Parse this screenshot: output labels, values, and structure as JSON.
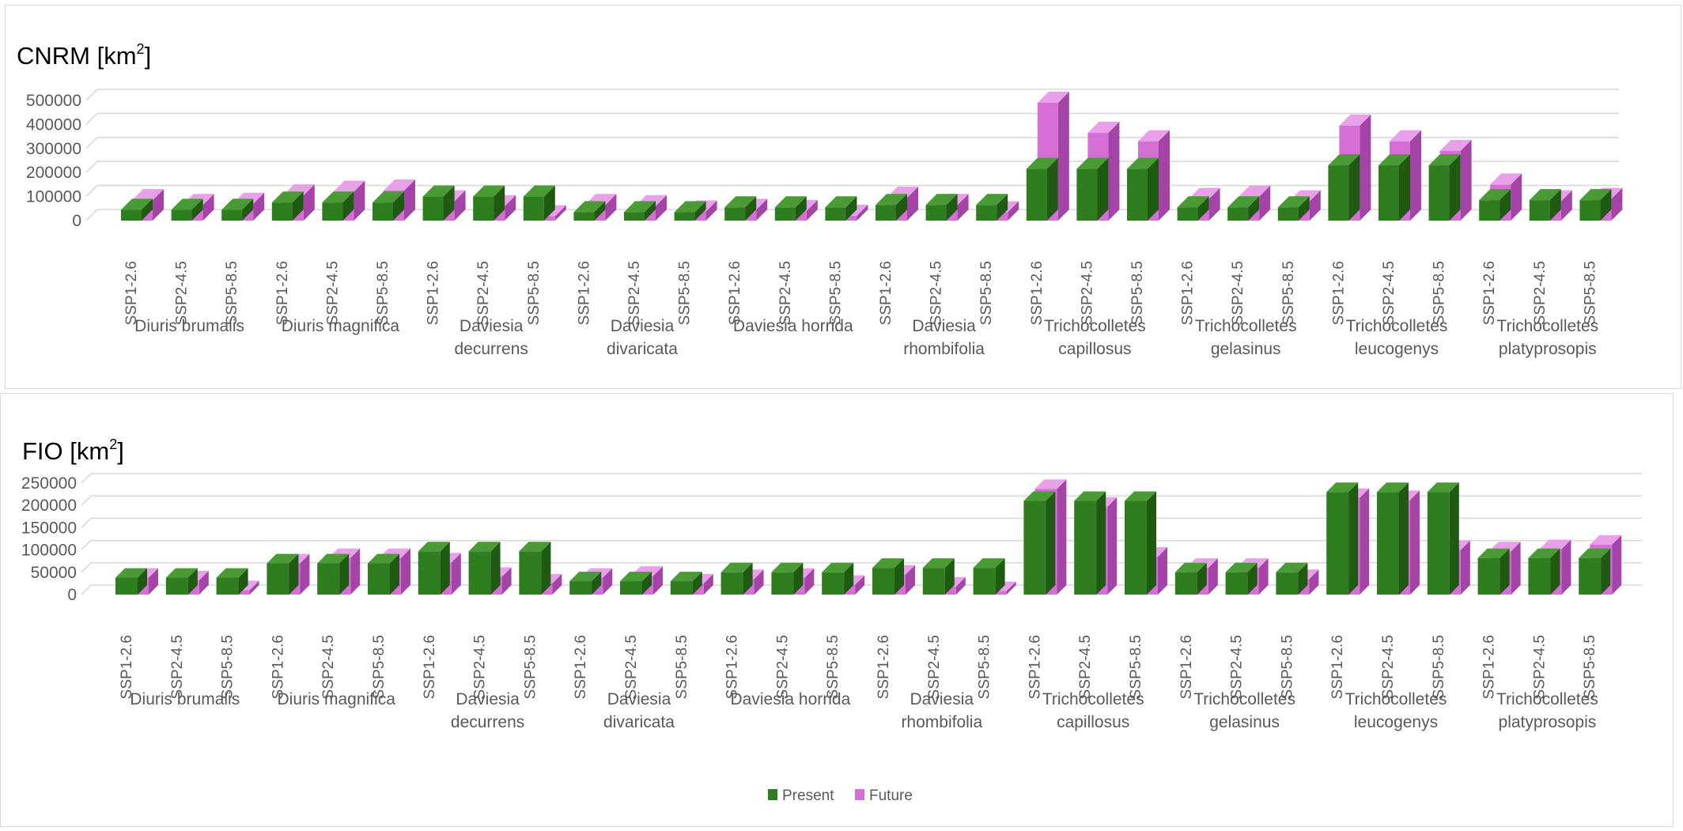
{
  "chart_data": [
    {
      "type": "bar",
      "title": "CNRM [km",
      "title_sup": "2",
      "title_end": "]",
      "ylim": [
        0,
        500000
      ],
      "yticks": [
        "0",
        "100000",
        "200000",
        "300000",
        "400000",
        "500000"
      ],
      "scenarios": [
        "SSP1-2.6",
        "SSP2-4.5",
        "SSP5-8.5"
      ],
      "species": [
        {
          "name": [
            "Diuris brumalis"
          ],
          "present": 45000,
          "future": [
            85000,
            65000,
            70000
          ]
        },
        {
          "name": [
            "Diuris magnifica"
          ],
          "present": 75000,
          "future": [
            105000,
            120000,
            125000
          ]
        },
        {
          "name": [
            "Daviesia",
            "decurrens"
          ],
          "present": 100000,
          "future": [
            80000,
            60000,
            18000
          ]
        },
        {
          "name": [
            "Daviesia",
            "divaricata"
          ],
          "present": 35000,
          "future": [
            65000,
            60000,
            38000
          ]
        },
        {
          "name": [
            "Daviesia horrida"
          ],
          "present": 55000,
          "future": [
            45000,
            40000,
            20000
          ]
        },
        {
          "name": [
            "Daviesia",
            "rhombifolia"
          ],
          "present": 65000,
          "future": [
            95000,
            65000,
            35000
          ]
        },
        {
          "name": [
            "Trichocolletes",
            "capillosus"
          ],
          "present": 215000,
          "future": [
            490000,
            365000,
            330000
          ]
        },
        {
          "name": [
            "Trichocolletes",
            "gelasinus"
          ],
          "present": 55000,
          "future": [
            90000,
            100000,
            80000
          ]
        },
        {
          "name": [
            "Trichocolletes",
            "leucogenys"
          ],
          "present": 230000,
          "future": [
            395000,
            330000,
            290000
          ]
        },
        {
          "name": [
            "Trichocolletes",
            "platyprosopis"
          ],
          "present": 85000,
          "future": [
            150000,
            80000,
            90000
          ]
        }
      ]
    },
    {
      "type": "bar",
      "title": "FIO [km",
      "title_sup": "2",
      "title_end": "]",
      "ylim": [
        0,
        250000
      ],
      "yticks": [
        "0",
        "50000",
        "100000",
        "150000",
        "200000",
        "250000"
      ],
      "scenarios": [
        "SSP1-2.6",
        "SSP2-4.5",
        "SSP5-8.5"
      ],
      "species": [
        {
          "name": [
            "Diuris brumalis"
          ],
          "present": 38000,
          "future": [
            38000,
            32000,
            10000
          ]
        },
        {
          "name": [
            "Diuris magnifica"
          ],
          "present": 70000,
          "future": [
            70000,
            82000,
            82000
          ]
        },
        {
          "name": [
            "Daviesia",
            "decurrens"
          ],
          "present": 97000,
          "future": [
            72000,
            40000,
            25000
          ]
        },
        {
          "name": [
            "Daviesia",
            "divaricata"
          ],
          "present": 30000,
          "future": [
            38000,
            42000,
            25000
          ]
        },
        {
          "name": [
            "Daviesia horrida"
          ],
          "present": 50000,
          "future": [
            35000,
            38000,
            22000
          ]
        },
        {
          "name": [
            "Daviesia",
            "rhombifolia"
          ],
          "present": 60000,
          "future": [
            45000,
            18000,
            8000
          ]
        },
        {
          "name": [
            "Trichocolletes",
            "capillosus"
          ],
          "present": 210000,
          "future": [
            237000,
            197000,
            85000
          ]
        },
        {
          "name": [
            "Trichocolletes",
            "gelasinus"
          ],
          "present": 50000,
          "future": [
            60000,
            60000,
            35000
          ]
        },
        {
          "name": [
            "Trichocolletes",
            "leucogenys"
          ],
          "present": 230000,
          "future": [
            217000,
            212000,
            100000
          ]
        },
        {
          "name": [
            "Trichocolletes",
            "platyprosopis"
          ],
          "present": 82000,
          "future": [
            97000,
            102000,
            112000
          ]
        }
      ],
      "legend": {
        "placement": "bottom",
        "items": [
          {
            "label": "Present",
            "color": "#2e7d1e"
          },
          {
            "label": "Future",
            "color": "#d56fd6"
          }
        ]
      }
    }
  ],
  "colors": {
    "present_front": "#2e7d1e",
    "present_side": "#1f5a13",
    "present_top": "#4a9a35",
    "future_front": "#d56fd6",
    "future_side": "#a544a7",
    "future_top": "#e8a0e9",
    "grid": "#d9d9d9",
    "text": "#595959"
  }
}
